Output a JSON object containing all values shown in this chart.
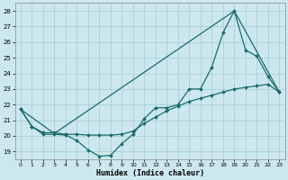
{
  "xlabel": "Humidex (Indice chaleur)",
  "background_color": "#cce8ee",
  "grid_color": "#aad0d8",
  "line_color": "#1a6b6b",
  "xlim": [
    -0.5,
    23.5
  ],
  "ylim": [
    18.5,
    28.5
  ],
  "yticks": [
    19,
    20,
    21,
    22,
    23,
    24,
    25,
    26,
    27,
    28
  ],
  "xticks": [
    0,
    1,
    2,
    3,
    4,
    5,
    6,
    7,
    8,
    9,
    10,
    11,
    12,
    13,
    14,
    15,
    16,
    17,
    18,
    19,
    20,
    21,
    22,
    23
  ],
  "series": [
    {
      "x": [
        0,
        1,
        2,
        3,
        4,
        5,
        6,
        7,
        8,
        9,
        10,
        11,
        12,
        13,
        14,
        15,
        16,
        17,
        18,
        19,
        20,
        21,
        22,
        23
      ],
      "y": [
        21.7,
        20.6,
        20.1,
        20.1,
        20.05,
        19.7,
        19.1,
        18.7,
        18.75,
        19.5,
        20.1,
        21.1,
        21.8,
        21.8,
        22.0,
        23.0,
        23.0,
        24.4,
        26.6,
        28.0,
        25.5,
        25.1,
        23.8,
        22.8
      ],
      "marker": "D",
      "markersize": 2.0,
      "linewidth": 0.9
    },
    {
      "x": [
        0,
        1,
        2,
        3,
        4,
        5,
        6,
        7,
        8,
        9,
        10,
        11,
        12,
        13,
        14,
        15,
        16,
        17,
        18,
        19,
        20,
        21,
        22,
        23
      ],
      "y": [
        21.7,
        20.6,
        20.2,
        20.2,
        20.1,
        20.1,
        20.05,
        20.05,
        20.05,
        20.1,
        20.3,
        20.8,
        21.2,
        21.6,
        21.9,
        22.2,
        22.4,
        22.6,
        22.8,
        23.0,
        23.1,
        23.2,
        23.3,
        22.8
      ],
      "marker": "D",
      "markersize": 2.0,
      "linewidth": 0.9
    },
    {
      "x": [
        0,
        3,
        19,
        23
      ],
      "y": [
        21.7,
        20.15,
        28.0,
        22.8
      ],
      "marker": null,
      "linewidth": 0.9
    }
  ]
}
